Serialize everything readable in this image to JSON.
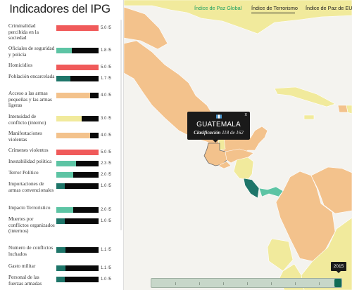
{
  "panel": {
    "title": "Indicadores del IPG",
    "indicators": [
      {
        "label": "Criminalidad percibida en la sociedad",
        "score": "5.0 /5",
        "value": 5.0,
        "color": "#f05a5a"
      },
      {
        "label": "Oficiales de seguridad y policía",
        "score": "1.8 /5",
        "value": 1.8,
        "color": "#5dc4a4"
      },
      {
        "label": "Homicidios",
        "score": "5.0 /5",
        "value": 5.0,
        "color": "#f05a5a"
      },
      {
        "label": "Población encarcelada",
        "score": "1.7 /5",
        "value": 1.7,
        "color": "#1e7569"
      },
      {
        "label": "Acceso a las armas pequeñas y las armas ligeras",
        "score": "4.0 /5",
        "value": 4.0,
        "color": "#f3c28c"
      },
      {
        "label": "Intensidad de conflicto (interno)",
        "score": "3.0 /5",
        "value": 3.0,
        "color": "#f1ea9c"
      },
      {
        "label": "Manifestaciones violentas",
        "score": "4.0 /5",
        "value": 4.0,
        "color": "#f3c28c"
      },
      {
        "label": "Crímenes violentos",
        "score": "5.0 /5",
        "value": 5.0,
        "color": "#f05a5a"
      },
      {
        "label": "Inestabilidad política",
        "score": "2.3 /5",
        "value": 2.3,
        "color": "#5dc4a4"
      },
      {
        "label": "Terror Político",
        "score": "2.0 /5",
        "value": 2.0,
        "color": "#5dc4a4"
      },
      {
        "label": "Importaciones de armas convencionales",
        "score": "1.0 /5",
        "value": 1.0,
        "color": "#1e7569"
      },
      {
        "label": "Impacto Terroristico",
        "score": "2.0 /5",
        "value": 2.0,
        "color": "#5dc4a4"
      },
      {
        "label": "Muertes por conflictos organizados (internos)",
        "score": "1.0 /5",
        "value": 1.0,
        "color": "#1e7569"
      },
      {
        "label": "Numero de conflictos luchados",
        "score": "1.1 /5",
        "value": 1.1,
        "color": "#1e7569"
      },
      {
        "label": "Gasto militar",
        "score": "1.1 /5",
        "value": 1.1,
        "color": "#1e7569"
      },
      {
        "label": "Personal de las fuerzas armadas",
        "score": "1.0 /5",
        "value": 1.0,
        "color": "#1e7569"
      }
    ]
  },
  "tabs": [
    {
      "label": "Índice de Paz Global",
      "active": true
    },
    {
      "label": "Índice de Terrorismo",
      "active": false
    },
    {
      "label": "Índice de Paz de EU",
      "active": false
    }
  ],
  "tooltip": {
    "country": "GUATEMALA",
    "rank_prefix": "Clasificación",
    "rank_value": "118 de 162",
    "close_symbol": "x",
    "flag_colors": [
      "#4997d0",
      "#ffffff",
      "#4997d0"
    ]
  },
  "slider": {
    "year": "2015",
    "position_fraction": 0.98
  },
  "colors": {
    "very_high": "#f05a5a",
    "high": "#f3c28c",
    "medium": "#f1ea9c",
    "low": "#5dc4a4",
    "very_low": "#1e7569",
    "active_tab": "#1a9e5f"
  }
}
